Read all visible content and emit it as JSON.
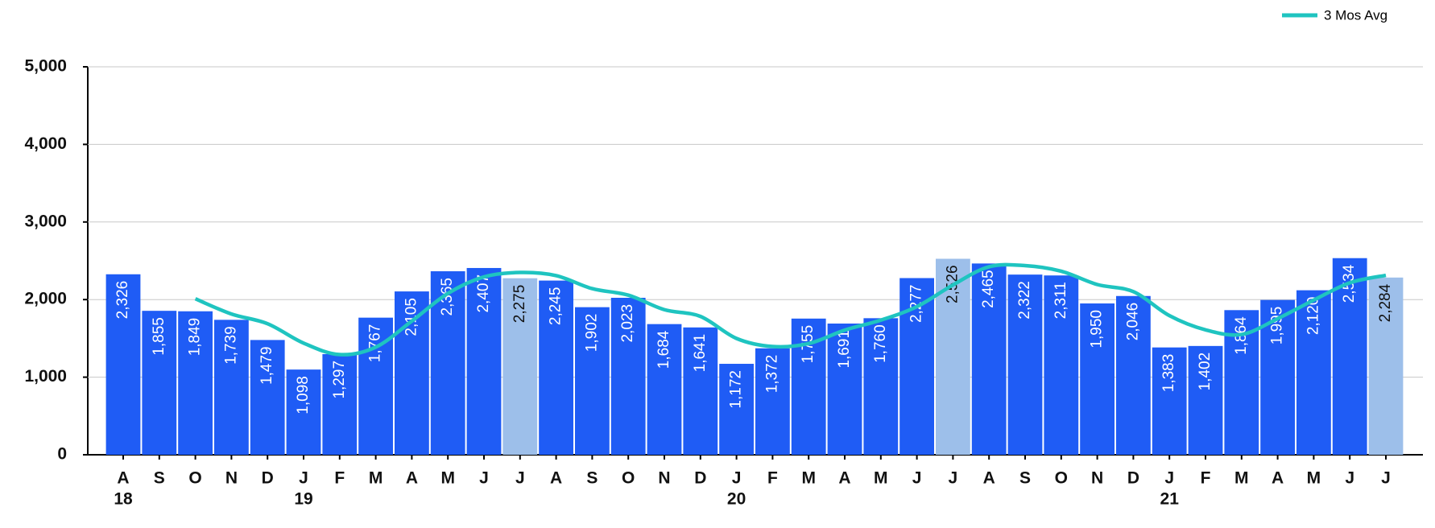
{
  "chart_data": {
    "type": "bar",
    "categories": [
      "A",
      "S",
      "O",
      "N",
      "D",
      "J",
      "F",
      "M",
      "A",
      "M",
      "J",
      "J",
      "A",
      "S",
      "O",
      "N",
      "D",
      "J",
      "F",
      "M",
      "A",
      "M",
      "J",
      "J",
      "A",
      "S",
      "O",
      "N",
      "D",
      "J",
      "F",
      "M",
      "A",
      "M",
      "J",
      "J"
    ],
    "year_labels": [
      "18",
      null,
      null,
      null,
      null,
      "19",
      null,
      null,
      null,
      null,
      null,
      null,
      null,
      null,
      null,
      null,
      null,
      "20",
      null,
      null,
      null,
      null,
      null,
      null,
      null,
      null,
      null,
      null,
      null,
      "21",
      null,
      null,
      null,
      null,
      null,
      null
    ],
    "series": [
      {
        "name": null,
        "values": [
          2326,
          1855,
          1849,
          1739,
          1479,
          1098,
          1297,
          1767,
          2105,
          2365,
          2407,
          2275,
          2245,
          1902,
          2023,
          1684,
          1641,
          1172,
          1372,
          1755,
          1691,
          1760,
          2277,
          2526,
          2465,
          2322,
          2311,
          1950,
          2046,
          1383,
          1402,
          1864,
          1995,
          2120,
          2534,
          2284
        ],
        "value_labels": [
          "2,326",
          "1,855",
          "1,849",
          "1,739",
          "1,479",
          "1,098",
          "1,297",
          "1,767",
          "2,105",
          "2,365",
          "2,407",
          "2,275",
          "2,245",
          "1,902",
          "2,023",
          "1,684",
          "1,641",
          "1,172",
          "1,372",
          "1,755",
          "1,691",
          "1,760",
          "2,277",
          "2,526",
          "2,465",
          "2,322",
          "2,311",
          "1,950",
          "2,046",
          "1,383",
          "1,402",
          "1,864",
          "1,995",
          "2,120",
          "2,534",
          "2,284"
        ],
        "colors": [
          "#1f5cf5",
          "#1f5cf5",
          "#1f5cf5",
          "#1f5cf5",
          "#1f5cf5",
          "#1f5cf5",
          "#1f5cf5",
          "#1f5cf5",
          "#1f5cf5",
          "#1f5cf5",
          "#1f5cf5",
          "#9dbfea",
          "#1f5cf5",
          "#1f5cf5",
          "#1f5cf5",
          "#1f5cf5",
          "#1f5cf5",
          "#1f5cf5",
          "#1f5cf5",
          "#1f5cf5",
          "#1f5cf5",
          "#1f5cf5",
          "#1f5cf5",
          "#9dbfea",
          "#1f5cf5",
          "#1f5cf5",
          "#1f5cf5",
          "#1f5cf5",
          "#1f5cf5",
          "#1f5cf5",
          "#1f5cf5",
          "#1f5cf5",
          "#1f5cf5",
          "#1f5cf5",
          "#1f5cf5",
          "#9dbfea"
        ]
      },
      {
        "name": "3 Mos Avg",
        "type": "line",
        "color": "#1fc4c0",
        "values": [
          null,
          null,
          2010,
          1814,
          1689,
          1439,
          1291,
          1387,
          1723,
          2079,
          2292,
          2349,
          2309,
          2141,
          2057,
          1870,
          1783,
          1499,
          1395,
          1433,
          1606,
          1735,
          1909,
          2188,
          2423,
          2438,
          2366,
          2194,
          2102,
          1793,
          1610,
          1550,
          1754,
          1993,
          2216,
          2313
        ]
      }
    ],
    "ylim": [
      0,
      5000
    ],
    "yticks": [
      0,
      {
        "value": 1000,
        "label": "1,000"
      },
      {
        "value": 2000,
        "label": "2,000"
      },
      {
        "value": 3000,
        "label": "3,000"
      },
      {
        "value": 4000,
        "label": "4,000"
      },
      {
        "value": 5000,
        "label": "5,000"
      }
    ],
    "grid": true,
    "legend": "top-right"
  }
}
